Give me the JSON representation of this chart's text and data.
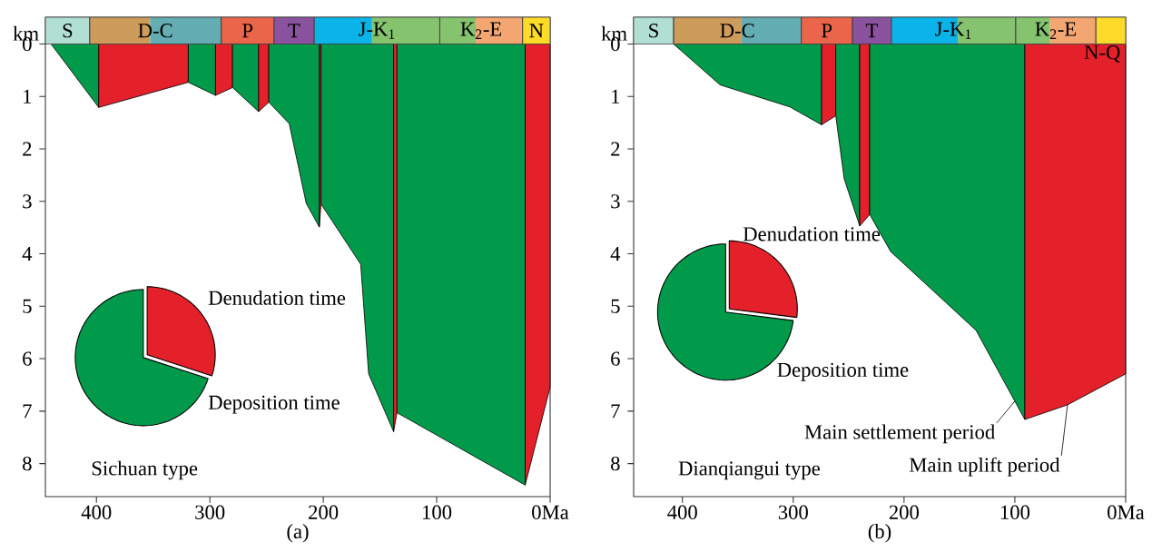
{
  "chart_data": [
    {
      "type": "area",
      "title": "Sichuan type",
      "xlabel": "(a)",
      "ylabel": "km",
      "xlim": [
        445,
        0
      ],
      "ylim": [
        8.63,
        -0.51
      ],
      "xticks": [
        400,
        300,
        200,
        100,
        {
          "value": 0,
          "label": "0Ma"
        }
      ],
      "yticks": [
        0,
        1,
        2,
        3,
        4,
        5,
        6,
        7,
        8
      ],
      "bands": [
        {
          "axis": "x",
          "from": 445,
          "to": 406,
          "label": "S",
          "color": "#b2dfd4"
        },
        {
          "axis": "x",
          "from": 406,
          "to": 352.6,
          "label": "D-C",
          "color": "#cd9b5a"
        },
        {
          "axis": "x",
          "from": 352.6,
          "to": 290,
          "color": "#64adb2"
        },
        {
          "axis": "x",
          "from": 290,
          "to": 243.5,
          "label": "P",
          "color": "#ea6549"
        },
        {
          "axis": "x",
          "from": 243.5,
          "to": 208,
          "label": "T",
          "color": "#8b52a0"
        },
        {
          "axis": "x",
          "from": 208,
          "to": 157,
          "label": "J-K$_{1}$",
          "color": "#0bb4e8"
        },
        {
          "axis": "x",
          "from": 157,
          "to": 97.3,
          "color": "#85c36f"
        },
        {
          "axis": "x",
          "from": 97.3,
          "to": 65.6,
          "label": "K$_{2}$-E",
          "color": "#85c36f"
        },
        {
          "axis": "x",
          "from": 65.6,
          "to": 24.3,
          "color": "#f4a672"
        },
        {
          "axis": "x",
          "from": 24.3,
          "to": 0,
          "label": "N",
          "color": "#fedb28"
        }
      ],
      "series": [
        {
          "color": "#009a4a",
          "x": [
            440,
            398
          ],
          "values": [
            0,
            1.21
          ]
        },
        {
          "color": "#e4202a",
          "x": [
            398,
            319
          ],
          "values": [
            1.21,
            0.73
          ]
        },
        {
          "color": "#009a4a",
          "x": [
            319,
            295
          ],
          "values": [
            0.73,
            0.98
          ]
        },
        {
          "color": "#e4202a",
          "x": [
            295,
            280
          ],
          "values": [
            0.98,
            0.83
          ]
        },
        {
          "color": "#009a4a",
          "x": [
            280,
            257
          ],
          "values": [
            0.83,
            1.29
          ]
        },
        {
          "color": "#e4202a",
          "x": [
            257,
            248
          ],
          "values": [
            1.29,
            1.11
          ]
        },
        {
          "color": "#009a4a",
          "x": [
            248,
            230,
            215,
            203.5
          ],
          "values": [
            1.11,
            1.52,
            3.04,
            3.49
          ]
        },
        {
          "color": "#e4202a",
          "x": [
            203.5,
            202
          ],
          "values": [
            3.49,
            3.05
          ]
        },
        {
          "color": "#009a4a",
          "x": [
            202,
            167,
            160,
            138
          ],
          "values": [
            3.05,
            4.2,
            6.29,
            7.39
          ]
        },
        {
          "color": "#e4202a",
          "x": [
            138,
            135
          ],
          "values": [
            7.39,
            7.03
          ]
        },
        {
          "color": "#009a4a",
          "x": [
            135,
            22
          ],
          "values": [
            7.03,
            8.41
          ]
        },
        {
          "color": "#e4202a",
          "x": [
            22,
            0
          ],
          "values": [
            8.41,
            6.54
          ]
        }
      ]
    },
    {
      "type": "pie",
      "categories": [
        "Denudation time",
        "Deposition time"
      ],
      "values": [
        30,
        70
      ],
      "colors": [
        "#e4202a",
        "#009a4a"
      ]
    },
    {
      "type": "area",
      "title": "Dianqiangui type",
      "xlabel": "(b)",
      "ylabel": "km",
      "xlim": [
        444,
        0
      ],
      "ylim": [
        8.63,
        -0.51
      ],
      "xticks": [
        400,
        300,
        200,
        100,
        {
          "value": 0,
          "label": "0Ma"
        }
      ],
      "yticks": [
        0,
        1,
        2,
        3,
        4,
        5,
        6,
        7,
        8
      ],
      "bands": [
        {
          "axis": "x",
          "from": 444,
          "to": 408,
          "label": "S",
          "color": "#b2dfd4"
        },
        {
          "axis": "x",
          "from": 408,
          "to": 346.6,
          "label": "D-C",
          "color": "#cd9b5a"
        },
        {
          "axis": "x",
          "from": 346.6,
          "to": 292.8,
          "color": "#64adb2"
        },
        {
          "axis": "x",
          "from": 292.8,
          "to": 246.6,
          "label": "P",
          "color": "#ea6549"
        },
        {
          "axis": "x",
          "from": 246.6,
          "to": 211.5,
          "label": "T",
          "color": "#8b52a0"
        },
        {
          "axis": "x",
          "from": 211.5,
          "to": 151.5,
          "label": "J-K$_{1}$",
          "color": "#0bb4e8"
        },
        {
          "axis": "x",
          "from": 151.5,
          "to": 99.3,
          "color": "#85c36f"
        },
        {
          "axis": "x",
          "from": 99.3,
          "to": 68.2,
          "label": "K$_{2}$-E",
          "color": "#85c36f"
        },
        {
          "axis": "x",
          "from": 68.2,
          "to": 26.9,
          "color": "#f4a672"
        },
        {
          "axis": "x",
          "from": 26.9,
          "to": 0,
          "label": "N-Q",
          "color": "#fedb28"
        }
      ],
      "annotations": [
        {
          "text": "Main settlement period",
          "x": 100,
          "y": 6.81
        },
        {
          "text": "Main uplift period",
          "x": 52.5,
          "y": 6.88
        }
      ],
      "series": [
        {
          "color": "#009a4a",
          "x": [
            408,
            366,
            303,
            274.4
          ],
          "values": [
            0,
            0.78,
            1.2,
            1.54
          ]
        },
        {
          "color": "#e4202a",
          "x": [
            274.4,
            261.6
          ],
          "values": [
            1.54,
            1.37
          ]
        },
        {
          "color": "#009a4a",
          "x": [
            261.6,
            254,
            240
          ],
          "values": [
            1.37,
            2.57,
            3.47
          ]
        },
        {
          "color": "#e4202a",
          "x": [
            240,
            231
          ],
          "values": [
            3.47,
            3.25
          ]
        },
        {
          "color": "#009a4a",
          "x": [
            231,
            212,
            135,
            91
          ],
          "values": [
            3.25,
            3.96,
            5.46,
            7.16
          ]
        },
        {
          "color": "#e4202a",
          "x": [
            91,
            52.5,
            0
          ],
          "values": [
            7.16,
            6.88,
            6.29
          ]
        }
      ]
    },
    {
      "type": "pie",
      "categories": [
        "Denudation time",
        "Deposition time"
      ],
      "values": [
        27,
        73
      ],
      "colors": [
        "#e4202a",
        "#009a4a"
      ]
    }
  ]
}
